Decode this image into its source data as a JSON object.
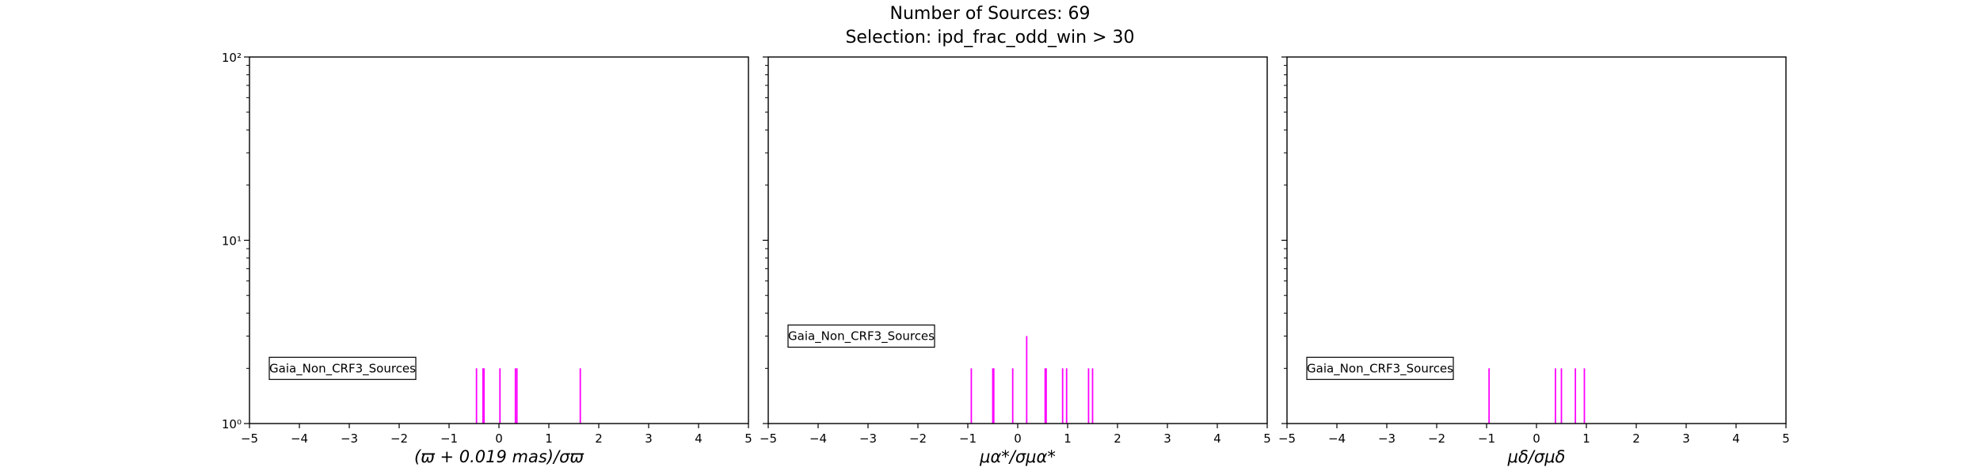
{
  "figure": {
    "title_line1": "Number of Sources: 69",
    "title_line2": "Selection: ipd_frac_odd_win > 30",
    "bar_color": "#ff00ff"
  },
  "chart_data": [
    {
      "type": "bar",
      "xlabel": "(ϖ + 0.019 mas)/σϖ",
      "xlim": [
        -5,
        5
      ],
      "ylim": [
        1,
        100
      ],
      "yscale": "log",
      "xticks": [
        -5,
        -4,
        -3,
        -2,
        -1,
        0,
        1,
        2,
        3,
        4,
        5
      ],
      "yticks": [
        {
          "value": 1,
          "label": "10⁰"
        },
        {
          "value": 10,
          "label": "10¹"
        },
        {
          "value": 100,
          "label": "10²"
        }
      ],
      "show_yticklabels": true,
      "legend": {
        "label": "Gaia_Non_CRF3_Sources",
        "placement": "lower-left",
        "y_level": 2
      },
      "bars": [
        {
          "x": -0.45,
          "count": 2
        },
        {
          "x": -0.32,
          "count": 2
        },
        {
          "x": -0.3,
          "count": 2
        },
        {
          "x": 0.02,
          "count": 2
        },
        {
          "x": 0.33,
          "count": 2
        },
        {
          "x": 0.36,
          "count": 2
        },
        {
          "x": 1.63,
          "count": 2
        }
      ]
    },
    {
      "type": "bar",
      "xlabel": "μα*/σμα*",
      "xlim": [
        -5,
        5
      ],
      "ylim": [
        1,
        100
      ],
      "yscale": "log",
      "xticks": [
        -5,
        -4,
        -3,
        -2,
        -1,
        0,
        1,
        2,
        3,
        4,
        5
      ],
      "yticks": [
        {
          "value": 1,
          "label": ""
        },
        {
          "value": 10,
          "label": ""
        },
        {
          "value": 100,
          "label": ""
        }
      ],
      "show_yticklabels": false,
      "legend": {
        "label": "Gaia_Non_CRF3_Sources",
        "placement": "lower-left",
        "y_level": 3
      },
      "bars": [
        {
          "x": -0.93,
          "count": 2
        },
        {
          "x": -0.5,
          "count": 2
        },
        {
          "x": -0.48,
          "count": 2
        },
        {
          "x": -0.1,
          "count": 2
        },
        {
          "x": 0.18,
          "count": 3
        },
        {
          "x": 0.55,
          "count": 2
        },
        {
          "x": 0.57,
          "count": 2
        },
        {
          "x": 0.9,
          "count": 2
        },
        {
          "x": 0.98,
          "count": 2
        },
        {
          "x": 1.42,
          "count": 2
        },
        {
          "x": 1.5,
          "count": 2
        }
      ]
    },
    {
      "type": "bar",
      "xlabel": "μδ/σμδ",
      "xlim": [
        -5,
        5
      ],
      "ylim": [
        1,
        100
      ],
      "yscale": "log",
      "xticks": [
        -5,
        -4,
        -3,
        -2,
        -1,
        0,
        1,
        2,
        3,
        4,
        5
      ],
      "yticks": [
        {
          "value": 1,
          "label": ""
        },
        {
          "value": 10,
          "label": ""
        },
        {
          "value": 100,
          "label": ""
        }
      ],
      "show_yticklabels": false,
      "legend": {
        "label": "Gaia_Non_CRF3_Sources",
        "placement": "lower-left",
        "y_level": 2
      },
      "bars": [
        {
          "x": -0.95,
          "count": 2
        },
        {
          "x": 0.38,
          "count": 2
        },
        {
          "x": 0.5,
          "count": 2
        },
        {
          "x": 0.78,
          "count": 2
        },
        {
          "x": 0.96,
          "count": 2
        }
      ]
    }
  ]
}
